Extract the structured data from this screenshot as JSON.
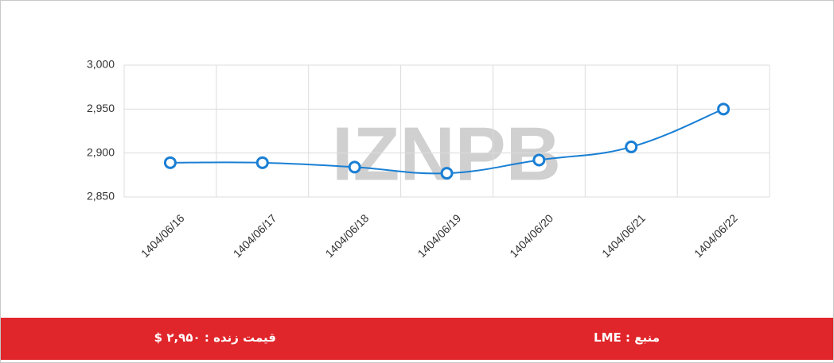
{
  "chart_data": {
    "type": "line",
    "watermark": "IZNPB",
    "categories": [
      "1404/06/16",
      "1404/06/17",
      "1404/06/18",
      "1404/06/19",
      "1404/06/20",
      "1404/06/21",
      "1404/06/22"
    ],
    "series": [
      {
        "name": "LME",
        "color": "#1a7fd4",
        "values": [
          2889,
          2889,
          2884,
          2877,
          2892,
          2907,
          2950
        ]
      }
    ],
    "ylim": [
      2850,
      3000
    ],
    "yticks": [
      {
        "value": 2850,
        "label": "2,850"
      },
      {
        "value": 2900,
        "label": "2,900"
      },
      {
        "value": 2950,
        "label": "2,950"
      },
      {
        "value": 3000,
        "label": "3,000"
      }
    ],
    "grid": true
  },
  "footer": {
    "price": "قیمت زنده : ۲,۹۵۰ $",
    "source": "منبع : LME"
  }
}
